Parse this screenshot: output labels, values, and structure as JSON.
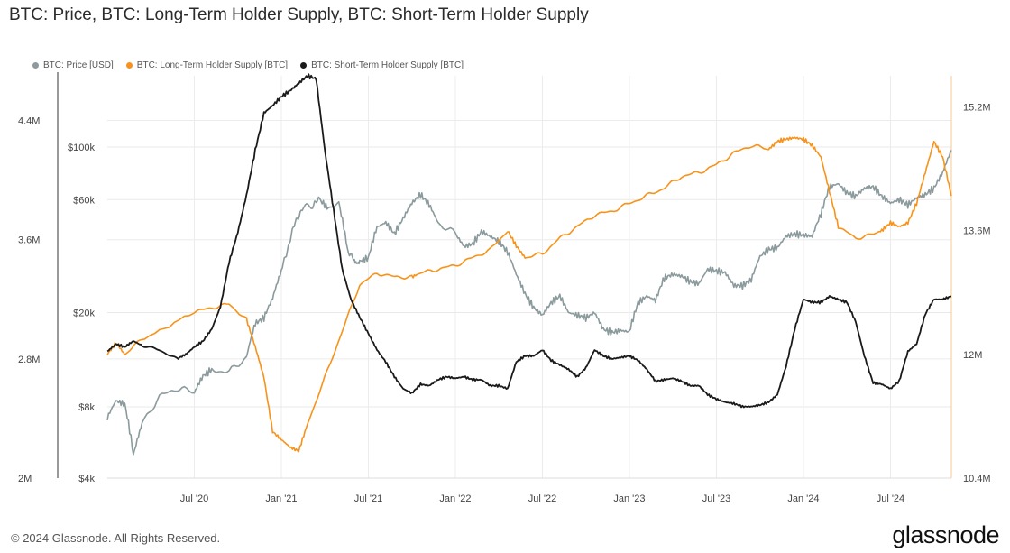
{
  "title": "BTC: Price, BTC: Long-Term Holder Supply, BTC: Short-Term Holder Supply",
  "footer": {
    "copyright": "© 2024 Glassnode. All Rights Reserved.",
    "logo": "glassnode"
  },
  "chart_data": {
    "type": "line",
    "title": "BTC: Price, BTC: Long-Term Holder Supply, BTC: Short-Term Holder Supply",
    "legend_position": "top-left",
    "grid": true,
    "x_ticks": [
      "Jul '20",
      "Jan '21",
      "Jul '21",
      "Jan '22",
      "Jul '22",
      "Jan '23",
      "Jul '23",
      "Jan '24",
      "Jul '24"
    ],
    "x_tick_t": [
      2020.5,
      2021.0,
      2021.5,
      2022.0,
      2022.5,
      2023.0,
      2023.5,
      2024.0,
      2024.5
    ],
    "xlim": [
      2020.0,
      2024.85
    ],
    "left_outer_axis": {
      "series": "BTC: Short-Term Holder Supply [BTC]",
      "scale": "linear",
      "ylim": [
        2000000,
        4700000
      ],
      "ticks": [
        2000000,
        2800000,
        3600000,
        4400000
      ],
      "tick_labels": [
        "2M",
        "2.8M",
        "3.6M",
        "4.4M"
      ]
    },
    "left_inner_axis": {
      "series": "BTC: Price [USD]",
      "scale": "log",
      "ylim": [
        4000,
        200000
      ],
      "ticks": [
        4000,
        8000,
        20000,
        60000,
        100000
      ],
      "tick_labels": [
        "$4k",
        "$8k",
        "$20k",
        "$60k",
        "$100k"
      ]
    },
    "right_axis": {
      "series": "BTC: Long-Term Holder Supply [BTC]",
      "scale": "linear",
      "ylim": [
        10400000,
        15600000
      ],
      "ticks": [
        10400000,
        12000000,
        13600000,
        15200000
      ],
      "tick_labels": [
        "10.4M",
        "12M",
        "13.6M",
        "15.2M"
      ]
    },
    "series": [
      {
        "name": "BTC: Price [USD]",
        "color": "#8b9a9c",
        "axis": "left_inner",
        "jitter": 0.035,
        "x": [
          2020.0,
          2020.05,
          2020.1,
          2020.15,
          2020.2,
          2020.3,
          2020.4,
          2020.5,
          2020.55,
          2020.6,
          2020.7,
          2020.8,
          2020.85,
          2020.9,
          2020.95,
          2021.0,
          2021.04,
          2021.08,
          2021.12,
          2021.18,
          2021.22,
          2021.27,
          2021.33,
          2021.38,
          2021.42,
          2021.45,
          2021.5,
          2021.55,
          2021.6,
          2021.65,
          2021.7,
          2021.75,
          2021.8,
          2021.85,
          2021.9,
          2022.0,
          2022.05,
          2022.1,
          2022.15,
          2022.2,
          2022.25,
          2022.3,
          2022.35,
          2022.4,
          2022.45,
          2022.5,
          2022.55,
          2022.6,
          2022.65,
          2022.7,
          2022.75,
          2022.8,
          2022.85,
          2022.9,
          2022.95,
          2023.0,
          2023.05,
          2023.1,
          2023.15,
          2023.2,
          2023.25,
          2023.3,
          2023.35,
          2023.4,
          2023.45,
          2023.5,
          2023.55,
          2023.6,
          2023.65,
          2023.7,
          2023.75,
          2023.8,
          2023.85,
          2023.9,
          2023.95,
          2024.0,
          2024.05,
          2024.1,
          2024.15,
          2024.2,
          2024.25,
          2024.3,
          2024.35,
          2024.4,
          2024.45,
          2024.5,
          2024.55,
          2024.6,
          2024.65,
          2024.7,
          2024.75,
          2024.8,
          2024.85
        ],
        "values": [
          7200,
          8500,
          8200,
          5000,
          6800,
          8800,
          9600,
          9200,
          10800,
          11500,
          11200,
          13000,
          18000,
          19000,
          23000,
          30000,
          38000,
          48000,
          55000,
          57000,
          60000,
          55000,
          58000,
          37000,
          33000,
          33000,
          34000,
          46000,
          48000,
          43000,
          50000,
          58000,
          63000,
          57000,
          48000,
          43000,
          38000,
          39000,
          44000,
          42000,
          40000,
          36000,
          29000,
          24000,
          21000,
          19500,
          22000,
          23500,
          20000,
          19500,
          19000,
          20000,
          17000,
          16500,
          16800,
          16600,
          22000,
          23500,
          22500,
          28000,
          29000,
          28500,
          27000,
          26500,
          30500,
          30000,
          29500,
          26000,
          26000,
          27500,
          34500,
          37000,
          37500,
          42000,
          43000,
          42500,
          42000,
          52000,
          68000,
          70000,
          64000,
          62000,
          67000,
          68000,
          62000,
          58000,
          60000,
          57000,
          61000,
          63000,
          67000,
          78000,
          97000
        ]
      },
      {
        "name": "BTC: Long-Term Holder Supply [BTC]",
        "color": "#f7931a",
        "axis": "right",
        "jitter": 0.002,
        "x": [
          2020.0,
          2020.05,
          2020.1,
          2020.2,
          2020.3,
          2020.5,
          2020.6,
          2020.7,
          2020.8,
          2020.85,
          2020.9,
          2020.95,
          2021.0,
          2021.05,
          2021.1,
          2021.15,
          2021.25,
          2021.35,
          2021.45,
          2021.55,
          2021.65,
          2021.75,
          2021.8,
          2021.9,
          2022.0,
          2022.1,
          2022.2,
          2022.3,
          2022.35,
          2022.4,
          2022.5,
          2022.6,
          2022.7,
          2022.8,
          2022.9,
          2023.0,
          2023.1,
          2023.2,
          2023.3,
          2023.4,
          2023.5,
          2023.6,
          2023.7,
          2023.8,
          2023.85,
          2023.9,
          2023.95,
          2024.0,
          2024.05,
          2024.1,
          2024.15,
          2024.2,
          2024.3,
          2024.4,
          2024.45,
          2024.5,
          2024.55,
          2024.6,
          2024.65,
          2024.7,
          2024.75,
          2024.8,
          2024.85
        ],
        "values": [
          12000,
          12150,
          12000,
          12200,
          12300,
          12550,
          12600,
          12650,
          12450,
          12100,
          11700,
          11000,
          10900,
          10800,
          10750,
          11100,
          11700,
          12300,
          12900,
          13050,
          13000,
          13000,
          13050,
          13100,
          13150,
          13250,
          13350,
          13600,
          13400,
          13250,
          13300,
          13500,
          13650,
          13800,
          13850,
          13950,
          14050,
          14150,
          14300,
          14350,
          14450,
          14600,
          14700,
          14650,
          14750,
          14780,
          14800,
          14780,
          14700,
          14550,
          14100,
          13650,
          13500,
          13550,
          13600,
          13700,
          13650,
          13700,
          13950,
          14350,
          14750,
          14550,
          14050
        ]
      },
      {
        "name": "BTC: Short-Term Holder Supply [BTC]",
        "color": "#1a1a1a",
        "axis": "left_outer",
        "jitter": 0.003,
        "x": [
          2020.0,
          2020.05,
          2020.1,
          2020.15,
          2020.2,
          2020.3,
          2020.4,
          2020.45,
          2020.5,
          2020.55,
          2020.6,
          2020.65,
          2020.7,
          2020.75,
          2020.8,
          2020.85,
          2020.9,
          2020.95,
          2021.0,
          2021.05,
          2021.1,
          2021.15,
          2021.2,
          2021.25,
          2021.3,
          2021.35,
          2021.4,
          2021.45,
          2021.5,
          2021.55,
          2021.6,
          2021.65,
          2021.7,
          2021.75,
          2021.8,
          2021.85,
          2021.9,
          2021.95,
          2022.0,
          2022.05,
          2022.1,
          2022.15,
          2022.2,
          2022.25,
          2022.3,
          2022.35,
          2022.4,
          2022.45,
          2022.5,
          2022.55,
          2022.6,
          2022.65,
          2022.7,
          2022.75,
          2022.8,
          2022.85,
          2022.9,
          2022.95,
          2023.0,
          2023.05,
          2023.1,
          2023.15,
          2023.2,
          2023.25,
          2023.3,
          2023.35,
          2023.4,
          2023.45,
          2023.5,
          2023.55,
          2023.6,
          2023.65,
          2023.7,
          2023.75,
          2023.8,
          2023.85,
          2023.9,
          2023.95,
          2024.0,
          2024.05,
          2024.1,
          2024.15,
          2024.2,
          2024.25,
          2024.3,
          2024.35,
          2024.4,
          2024.45,
          2024.5,
          2024.55,
          2024.6,
          2024.65,
          2024.7,
          2024.75,
          2024.8,
          2024.85
        ],
        "values": [
          2850,
          2900,
          2880,
          2920,
          2890,
          2860,
          2800,
          2830,
          2880,
          2920,
          3000,
          3150,
          3450,
          3650,
          3900,
          4200,
          4450,
          4500,
          4560,
          4600,
          4650,
          4700,
          4680,
          4200,
          3800,
          3400,
          3200,
          3080,
          2970,
          2860,
          2780,
          2680,
          2600,
          2570,
          2630,
          2620,
          2660,
          2680,
          2670,
          2680,
          2660,
          2660,
          2620,
          2620,
          2600,
          2780,
          2820,
          2820,
          2860,
          2790,
          2760,
          2730,
          2680,
          2740,
          2860,
          2820,
          2800,
          2810,
          2820,
          2790,
          2730,
          2650,
          2660,
          2670,
          2650,
          2620,
          2620,
          2560,
          2530,
          2510,
          2500,
          2480,
          2480,
          2490,
          2510,
          2560,
          2750,
          3000,
          3200,
          3180,
          3180,
          3220,
          3200,
          3180,
          3050,
          2820,
          2640,
          2630,
          2600,
          2650,
          2850,
          2900,
          3100,
          3200,
          3200,
          3220
        ]
      }
    ]
  }
}
